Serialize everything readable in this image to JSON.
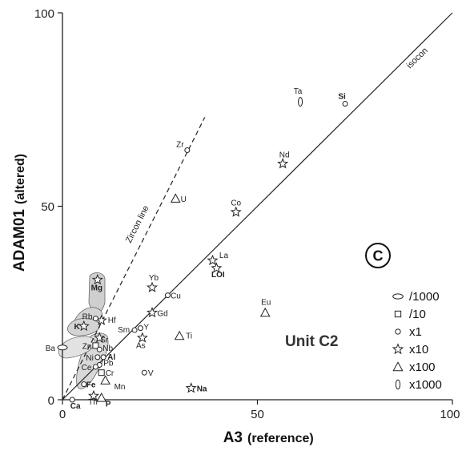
{
  "chart_data": {
    "type": "scatter",
    "panel_label": "C",
    "unit_label": "Unit C2",
    "xlabel": "A3",
    "xlabel_sub": "(reference)",
    "ylabel": "ADAM01",
    "ylabel_sub": "(altered)",
    "xlim": [
      0,
      100
    ],
    "ylim": [
      0,
      100
    ],
    "x_ticks": [
      "0",
      "50",
      "100"
    ],
    "y_ticks": [
      "0",
      "50",
      "100"
    ],
    "lines": [
      {
        "name": "isocon",
        "x": [
          0,
          100
        ],
        "y": [
          0,
          100
        ]
      },
      {
        "name": "Zircon line",
        "x": [
          0,
          36.5
        ],
        "y": [
          0,
          73
        ]
      }
    ],
    "legend": [
      {
        "symbol": "ellipse-h",
        "label": "/1000"
      },
      {
        "symbol": "square",
        "label": "/10"
      },
      {
        "symbol": "circle",
        "label": "x1"
      },
      {
        "symbol": "star",
        "label": "x10"
      },
      {
        "symbol": "triangle",
        "label": "x100"
      },
      {
        "symbol": "ellipse-v",
        "label": "x1000"
      }
    ],
    "points": [
      {
        "label": "Ta",
        "x": 61,
        "y": 77,
        "symbol": "ellipse-v",
        "bold": false
      },
      {
        "label": "Si",
        "x": 72.5,
        "y": 76.5,
        "symbol": "circle",
        "bold": true
      },
      {
        "label": "Nd",
        "x": 56.5,
        "y": 61,
        "symbol": "star",
        "bold": false
      },
      {
        "label": "Zr",
        "x": 32,
        "y": 64.5,
        "symbol": "circle",
        "bold": false
      },
      {
        "label": "U",
        "x": 29,
        "y": 52,
        "symbol": "triangle",
        "bold": false
      },
      {
        "label": "Co",
        "x": 44.5,
        "y": 48.5,
        "symbol": "star",
        "bold": false
      },
      {
        "label": "La",
        "x": 38.5,
        "y": 36,
        "symbol": "star",
        "bold": false
      },
      {
        "label": "LOI",
        "x": 39.5,
        "y": 34,
        "symbol": "star",
        "bold": true
      },
      {
        "label": "Eu",
        "x": 52,
        "y": 22.5,
        "symbol": "triangle",
        "bold": false
      },
      {
        "label": "Yb",
        "x": 23,
        "y": 29,
        "symbol": "star",
        "bold": false
      },
      {
        "label": "Cu",
        "x": 27,
        "y": 27,
        "symbol": "circle",
        "bold": false
      },
      {
        "label": "Gd",
        "x": 23,
        "y": 22.5,
        "symbol": "star",
        "bold": false
      },
      {
        "label": "Sm",
        "x": 18.5,
        "y": 18,
        "symbol": "circle",
        "bold": false
      },
      {
        "label": "Y",
        "x": 20,
        "y": 18.5,
        "symbol": "circle",
        "bold": false
      },
      {
        "label": "As",
        "x": 20.5,
        "y": 16,
        "symbol": "star",
        "bold": false
      },
      {
        "label": "Ti",
        "x": 30,
        "y": 16.5,
        "symbol": "triangle",
        "bold": false
      },
      {
        "label": "V",
        "x": 21,
        "y": 7,
        "symbol": "circle",
        "bold": false
      },
      {
        "label": "Na",
        "x": 33,
        "y": 3,
        "symbol": "star",
        "bold": true
      },
      {
        "label": "Mn",
        "x": 11,
        "y": 5,
        "symbol": "triangle",
        "bold": false
      },
      {
        "label": "Mg",
        "x": 9,
        "y": 31,
        "symbol": "star",
        "bold": true
      },
      {
        "label": "Hf",
        "x": 10,
        "y": 20.5,
        "symbol": "star",
        "bold": false
      },
      {
        "label": "Rb",
        "x": 8.5,
        "y": 21,
        "symbol": "circle",
        "bold": false
      },
      {
        "label": "K",
        "x": 5.5,
        "y": 19,
        "symbol": "star",
        "bold": true
      },
      {
        "label": "Sr",
        "x": 9.5,
        "y": 16,
        "symbol": "star",
        "bold": false
      },
      {
        "label": "Zn",
        "x": 8.5,
        "y": 14,
        "symbol": "square",
        "bold": false
      },
      {
        "label": "Nb",
        "x": 9.5,
        "y": 13,
        "symbol": "circle",
        "bold": false
      },
      {
        "label": "Ni",
        "x": 9,
        "y": 11,
        "symbol": "circle",
        "bold": false
      },
      {
        "label": "Al",
        "x": 10.5,
        "y": 11,
        "symbol": "circle",
        "bold": true
      },
      {
        "label": "Pb",
        "x": 9.5,
        "y": 9,
        "symbol": "circle",
        "bold": false
      },
      {
        "label": "Ce",
        "x": 8.5,
        "y": 8.5,
        "symbol": "circle",
        "bold": false
      },
      {
        "label": "Cr",
        "x": 10,
        "y": 7,
        "symbol": "square",
        "bold": false
      },
      {
        "label": "Fe",
        "x": 5.5,
        "y": 4,
        "symbol": "circle",
        "bold": true
      },
      {
        "label": "Ba",
        "x": 0,
        "y": 13.5,
        "symbol": "ellipse-h",
        "bold": false
      },
      {
        "label": "Ca",
        "x": 2.5,
        "y": 0,
        "symbol": "circle",
        "bold": true
      },
      {
        "label": "Th",
        "x": 8,
        "y": 1,
        "symbol": "star",
        "bold": false
      },
      {
        "label": "P",
        "x": 10,
        "y": 0.5,
        "symbol": "triangle",
        "bold": true
      }
    ]
  }
}
